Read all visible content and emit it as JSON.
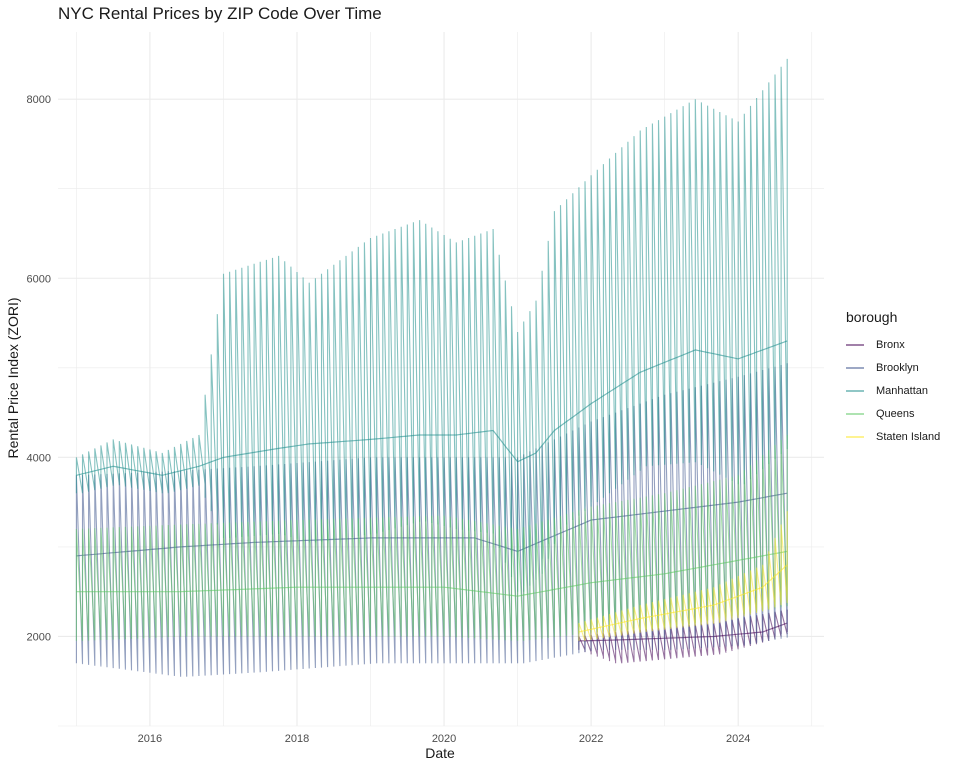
{
  "chart_data": {
    "type": "line",
    "title": "NYC Rental Prices by ZIP Code Over Time",
    "xlabel": "Date",
    "ylabel": "Rental Price Index (ZORI)",
    "xlim": [
      "2014-10-01",
      "2025-03-01"
    ],
    "ylim": [
      1000,
      8750
    ],
    "x_ticks": [
      "2016",
      "2018",
      "2020",
      "2022",
      "2024"
    ],
    "y_ticks": [
      2000,
      4000,
      6000,
      8000
    ],
    "grid": true,
    "legend": {
      "title": "borough",
      "position": "right"
    },
    "series": [
      {
        "name": "Bronx",
        "color": "#440154",
        "start": "2021-11",
        "points": [
          [
            "2021-11",
            1850,
            1950,
            2000
          ],
          [
            "2022-05",
            1700,
            1960,
            2050
          ],
          [
            "2023-01",
            1750,
            1980,
            2100
          ],
          [
            "2023-09",
            1800,
            2000,
            2150
          ],
          [
            "2024-05",
            1950,
            2050,
            2250
          ],
          [
            "2024-09",
            2050,
            2150,
            2300
          ]
        ]
      },
      {
        "name": "Brooklyn",
        "color": "#3b528b",
        "start": "2015-01",
        "points": [
          [
            "2015-01",
            1700,
            2900,
            3800
          ],
          [
            "2016-06",
            1550,
            3000,
            3850
          ],
          [
            "2017-06",
            1600,
            3050,
            3900
          ],
          [
            "2019-01",
            1700,
            3100,
            4000
          ],
          [
            "2020-06",
            1700,
            3100,
            4000
          ],
          [
            "2021-01",
            1700,
            2950,
            4000
          ],
          [
            "2022-01",
            1850,
            3300,
            4400
          ],
          [
            "2023-01",
            1850,
            3400,
            4700
          ],
          [
            "2024-01",
            1900,
            3500,
            4900
          ],
          [
            "2024-09",
            2000,
            3600,
            5050
          ]
        ]
      },
      {
        "name": "Manhattan",
        "color": "#21908d",
        "start": "2015-01",
        "points": [
          [
            "2015-01",
            3600,
            3800,
            4000
          ],
          [
            "2015-07",
            3700,
            3900,
            4200
          ],
          [
            "2016-03",
            3600,
            3800,
            4050
          ],
          [
            "2016-09",
            3700,
            3900,
            4250
          ],
          [
            "2017-01",
            3100,
            4000,
            6050
          ],
          [
            "2017-10",
            3150,
            4100,
            6250
          ],
          [
            "2018-03",
            3050,
            4150,
            5950
          ],
          [
            "2019-01",
            3150,
            4200,
            6450
          ],
          [
            "2019-09",
            3300,
            4250,
            6650
          ],
          [
            "2020-03",
            3200,
            4250,
            6400
          ],
          [
            "2020-09",
            3150,
            4300,
            6550
          ],
          [
            "2021-01",
            2500,
            3950,
            5400
          ],
          [
            "2021-04",
            2700,
            4050,
            5750
          ],
          [
            "2021-07",
            3200,
            4300,
            6750
          ],
          [
            "2022-01",
            3500,
            4600,
            7150
          ],
          [
            "2022-09",
            3900,
            4950,
            7650
          ],
          [
            "2023-06",
            3950,
            5200,
            8000
          ],
          [
            "2024-01",
            3700,
            5100,
            7750
          ],
          [
            "2024-09",
            4150,
            5300,
            8450
          ]
        ]
      },
      {
        "name": "Queens",
        "color": "#5dc863",
        "start": "2015-01",
        "points": [
          [
            "2015-01",
            1950,
            2500,
            3200
          ],
          [
            "2016-06",
            2000,
            2500,
            3250
          ],
          [
            "2018-01",
            2000,
            2550,
            3300
          ],
          [
            "2020-01",
            2000,
            2550,
            3350
          ],
          [
            "2021-01",
            1950,
            2450,
            3200
          ],
          [
            "2022-01",
            2050,
            2600,
            3450
          ],
          [
            "2023-01",
            2100,
            2700,
            3600
          ],
          [
            "2024-01",
            2250,
            2850,
            3800
          ],
          [
            "2024-09",
            2350,
            2950,
            4250
          ]
        ]
      },
      {
        "name": "Staten Island",
        "color": "#fde725",
        "start": "2021-11",
        "points": [
          [
            "2021-11",
            1950,
            2050,
            2150
          ],
          [
            "2022-09",
            2050,
            2200,
            2350
          ],
          [
            "2023-09",
            2150,
            2350,
            2550
          ],
          [
            "2024-05",
            2300,
            2550,
            2800
          ],
          [
            "2024-09",
            2400,
            2800,
            3400
          ]
        ]
      }
    ]
  }
}
